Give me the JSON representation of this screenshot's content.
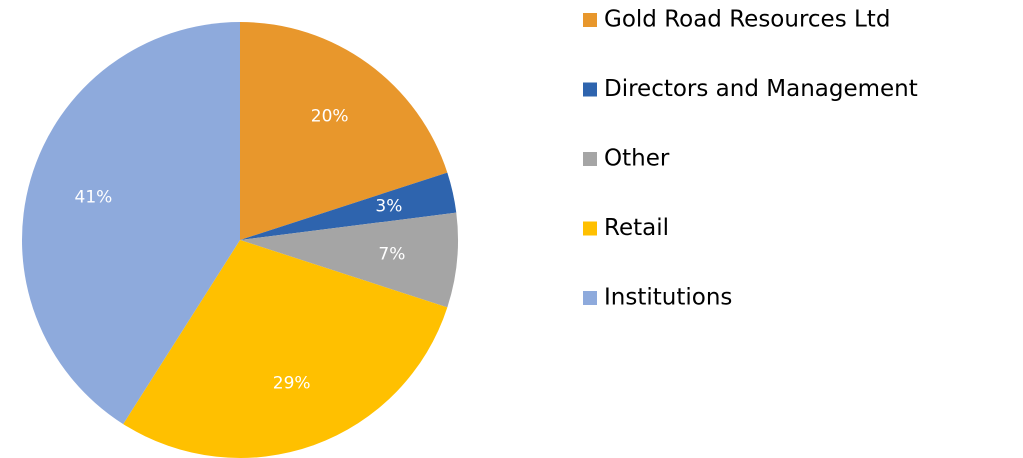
{
  "chart_data": {
    "type": "pie",
    "categories": [
      "Gold Road Resources Ltd",
      "Directors and Management",
      "Other",
      "Retail",
      "Institutions"
    ],
    "values": [
      20,
      3,
      7,
      29,
      41
    ],
    "value_labels": [
      "20%",
      "3%",
      "7%",
      "29%",
      "41%"
    ],
    "colors": [
      "#e8972c",
      "#2e64ae",
      "#a5a5a5",
      "#ffc000",
      "#8eaadc"
    ],
    "legend": "right"
  }
}
